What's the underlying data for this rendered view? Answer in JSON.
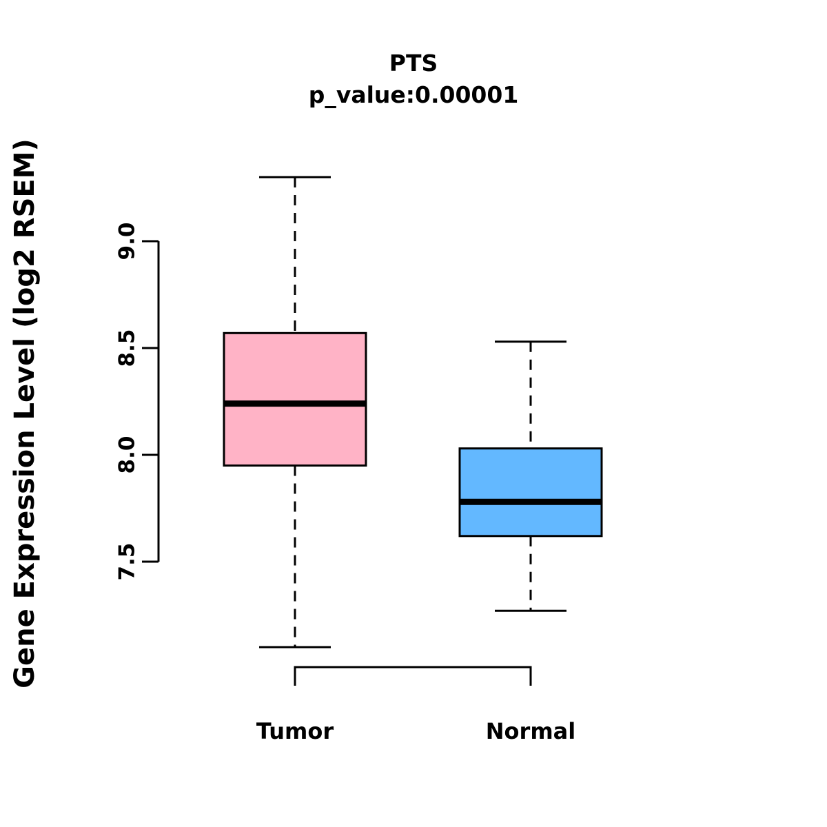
{
  "title": "PTS",
  "subtitle": "p_value:0.00001",
  "ylabel": "Gene Expression Level (log2 RSEM)",
  "chart_data": {
    "type": "box",
    "title": "PTS",
    "subtitle": "p_value:0.00001",
    "ylabel": "Gene Expression Level (log2 RSEM)",
    "xlabel": "",
    "categories": [
      "Tumor",
      "Normal"
    ],
    "yticks": [
      7.5,
      8.0,
      8.5,
      9.0
    ],
    "ylim": [
      7.0,
      9.4
    ],
    "grid": false,
    "legend": "none",
    "series": [
      {
        "name": "Tumor",
        "color": "#FFB3C6",
        "whisker_low": 7.1,
        "q1": 7.95,
        "median": 8.24,
        "q3": 8.57,
        "whisker_high": 9.3
      },
      {
        "name": "Normal",
        "color": "#63B8FF",
        "whisker_low": 7.27,
        "q1": 7.62,
        "median": 7.78,
        "q3": 8.03,
        "whisker_high": 8.53
      }
    ]
  }
}
